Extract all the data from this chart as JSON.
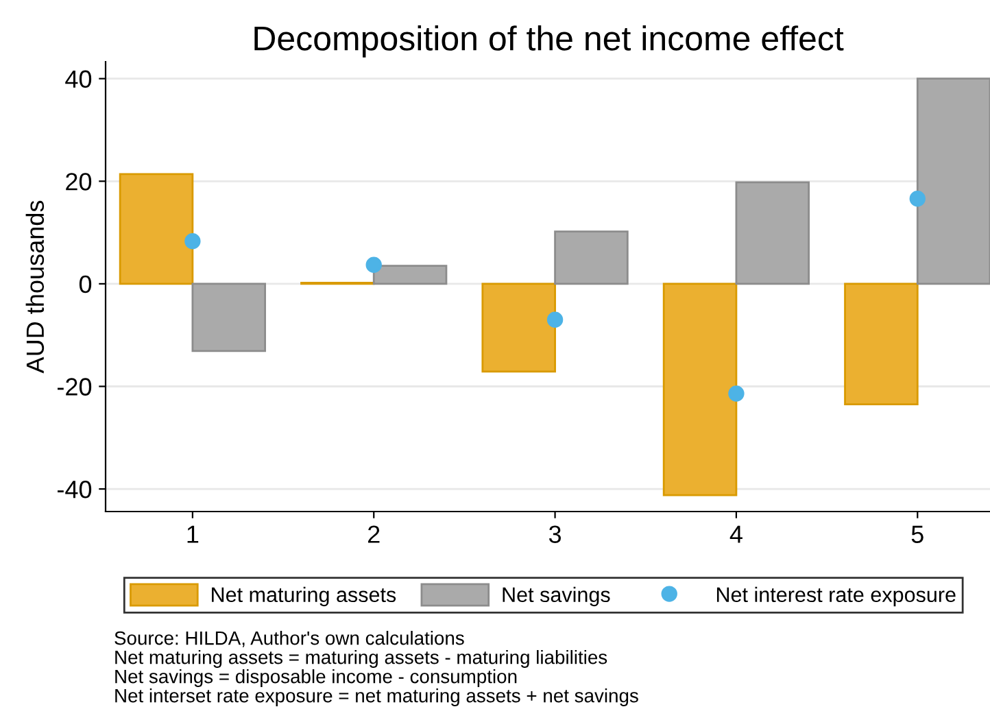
{
  "chart_data": {
    "type": "bar",
    "title": "Decomposition of the net income effect",
    "ylabel": "AUD thousands",
    "x": [
      1,
      2,
      3,
      4,
      5
    ],
    "series": [
      {
        "name": "Net maturing assets",
        "color": "#ebb030",
        "values": [
          21.4,
          0.2,
          -17.1,
          -41.2,
          -23.5
        ]
      },
      {
        "name": "Net savings",
        "color": "#aaaaaa",
        "values": [
          -13.1,
          3.5,
          10.2,
          19.8,
          40
        ]
      },
      {
        "name": "Net interest rate exposure",
        "type": "scatter",
        "color": "#4db3e6",
        "values": [
          8.3,
          3.7,
          -7.0,
          -21.4,
          16.6
        ]
      }
    ],
    "xlim": [
      0.52,
      5.4
    ],
    "xticks": [
      1,
      2,
      3,
      4,
      5
    ],
    "ylim": [
      -44.4,
      43.3
    ],
    "yticks": [
      -40,
      -20,
      0,
      20,
      40
    ],
    "grid": "y",
    "legend": "bottom",
    "marker": "circle",
    "annotations": [
      "Source: HILDA, Author's own calculations",
      "Net maturing assets = maturing assets - maturing liabilities",
      "Net savings = disposable income - consumption",
      "Net interset rate exposure = net maturing assets + net savings"
    ]
  }
}
